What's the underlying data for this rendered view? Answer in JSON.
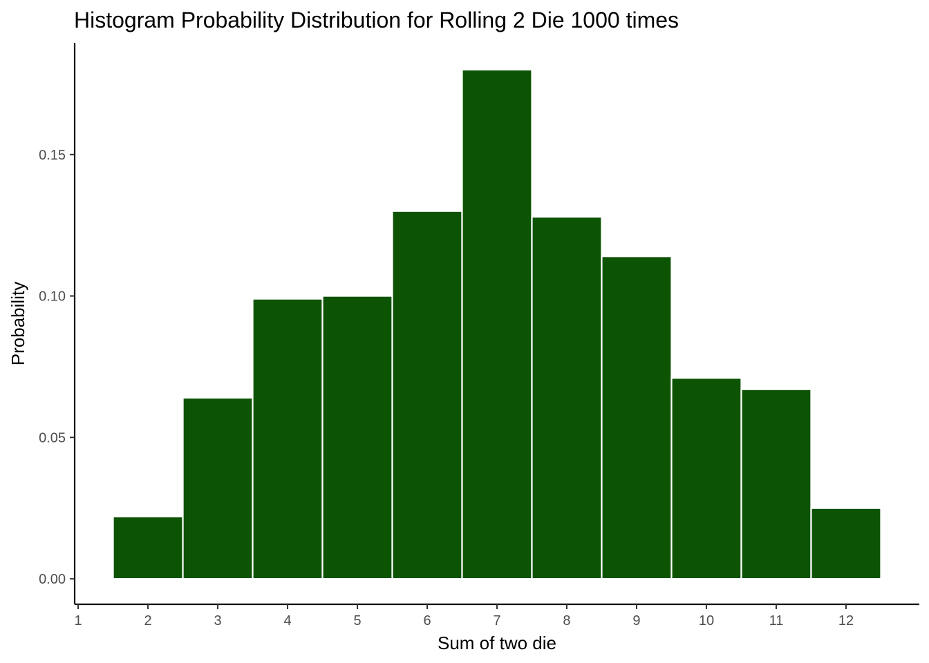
{
  "chart_data": {
    "type": "bar",
    "title": "Histogram Probability Distribution for Rolling 2 Die 1000 times",
    "xlabel": "Sum of two die",
    "ylabel": "Probability",
    "categories": [
      2,
      3,
      4,
      5,
      6,
      7,
      8,
      9,
      10,
      11,
      12
    ],
    "values": [
      0.022,
      0.064,
      0.099,
      0.1,
      0.13,
      0.18,
      0.128,
      0.114,
      0.071,
      0.067,
      0.025
    ],
    "x_ticks": [
      "1",
      "2",
      "3",
      "4",
      "5",
      "6",
      "7",
      "8",
      "9",
      "10",
      "11",
      "12"
    ],
    "y_ticks": [
      "0.00",
      "0.05",
      "0.10",
      "0.15"
    ],
    "xlim": [
      0.95,
      13.05
    ],
    "ylim": [
      -0.009,
      0.1895
    ],
    "bar_width": 1,
    "grid": false,
    "legend": "none",
    "colors": {
      "bar_fill": "#0d5304",
      "bar_edge": "#ffffff",
      "axis": "#000000",
      "tick_text": "#4d4d4d"
    }
  }
}
